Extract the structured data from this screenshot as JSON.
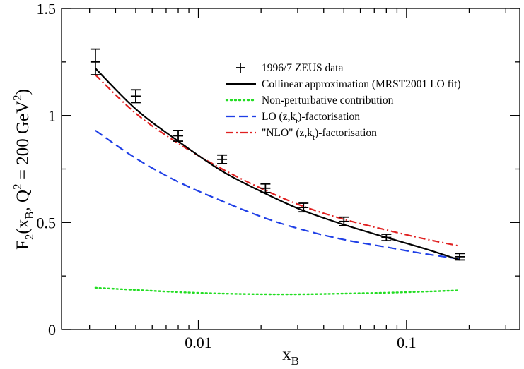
{
  "chart_data": {
    "type": "line",
    "title": "",
    "xlabel": {
      "main": "x",
      "sub": "B"
    },
    "ylabel": {
      "p1": "F",
      "s1": "2",
      "p2": "(x",
      "s2": "B",
      "p3": ", Q",
      "e1": "2",
      "p4": " = 200 GeV",
      "e2": "2",
      "p5": ")"
    },
    "xscale": "log",
    "xlim": [
      0.0022,
      0.35
    ],
    "ylim": [
      0,
      1.5
    ],
    "xticks": [
      {
        "value": 0.01,
        "label": "0.01"
      },
      {
        "value": 0.1,
        "label": "0.1"
      }
    ],
    "yticks": [
      {
        "value": 0,
        "label": "0"
      },
      {
        "value": 0.5,
        "label": "0.5"
      },
      {
        "value": 1,
        "label": "1"
      },
      {
        "value": 1.5,
        "label": "1.5"
      }
    ],
    "data_points": {
      "name": "1996/7 ZEUS data",
      "points": [
        {
          "x": 0.0032,
          "y": 1.25,
          "err": 0.06
        },
        {
          "x": 0.005,
          "y": 1.09,
          "err": 0.03
        },
        {
          "x": 0.008,
          "y": 0.905,
          "err": 0.025
        },
        {
          "x": 0.013,
          "y": 0.795,
          "err": 0.02
        },
        {
          "x": 0.021,
          "y": 0.66,
          "err": 0.02
        },
        {
          "x": 0.032,
          "y": 0.57,
          "err": 0.02
        },
        {
          "x": 0.05,
          "y": 0.505,
          "err": 0.02
        },
        {
          "x": 0.08,
          "y": 0.43,
          "err": 0.015
        },
        {
          "x": 0.18,
          "y": 0.34,
          "err": 0.015
        }
      ]
    },
    "series": [
      {
        "name": "Collinear approximation (MRST2001 LO fit)",
        "color": "#000000",
        "dash": "solid",
        "x": [
          0.0032,
          0.005,
          0.008,
          0.013,
          0.021,
          0.032,
          0.05,
          0.08,
          0.12,
          0.18
        ],
        "y": [
          1.22,
          1.03,
          0.88,
          0.74,
          0.635,
          0.555,
          0.49,
          0.43,
          0.38,
          0.325
        ]
      },
      {
        "name": "Non-perturbative contribution",
        "color": "#22dd22",
        "dash": "dotted",
        "x": [
          0.0032,
          0.005,
          0.008,
          0.013,
          0.021,
          0.032,
          0.05,
          0.08,
          0.12,
          0.18
        ],
        "y": [
          0.195,
          0.185,
          0.175,
          0.168,
          0.165,
          0.165,
          0.168,
          0.172,
          0.177,
          0.183
        ]
      },
      {
        "name": "LO (z,k_t)-factorisation",
        "color": "#1f3fe6",
        "dash": "dashed",
        "x": [
          0.0032,
          0.005,
          0.008,
          0.013,
          0.021,
          0.032,
          0.05,
          0.08,
          0.12,
          0.18
        ],
        "y": [
          0.93,
          0.8,
          0.69,
          0.6,
          0.52,
          0.465,
          0.42,
          0.385,
          0.355,
          0.33
        ]
      },
      {
        "name": "\"NLO\" (z,k_t)-factorisation",
        "color": "#e02020",
        "dash": "dashdot",
        "x": [
          0.0032,
          0.005,
          0.008,
          0.013,
          0.021,
          0.032,
          0.05,
          0.08,
          0.12,
          0.18
        ],
        "y": [
          1.19,
          1.01,
          0.87,
          0.75,
          0.65,
          0.575,
          0.515,
          0.465,
          0.425,
          0.39
        ]
      }
    ],
    "legend": {
      "placement": "top-right",
      "entries": [
        {
          "text": "1996/7 ZEUS data",
          "marker": "errorbar"
        },
        {
          "text": "Collinear approximation (MRST2001 LO fit)",
          "series": 0
        },
        {
          "text": "Non-perturbative contribution",
          "series": 1
        },
        {
          "main": "LO (z,k",
          "sub": "t",
          "rest": ")-factorisation",
          "series": 2
        },
        {
          "main": "\"NLO\" (z,k",
          "sub": "t",
          "rest": ")-factorisation",
          "series": 3
        }
      ]
    }
  }
}
